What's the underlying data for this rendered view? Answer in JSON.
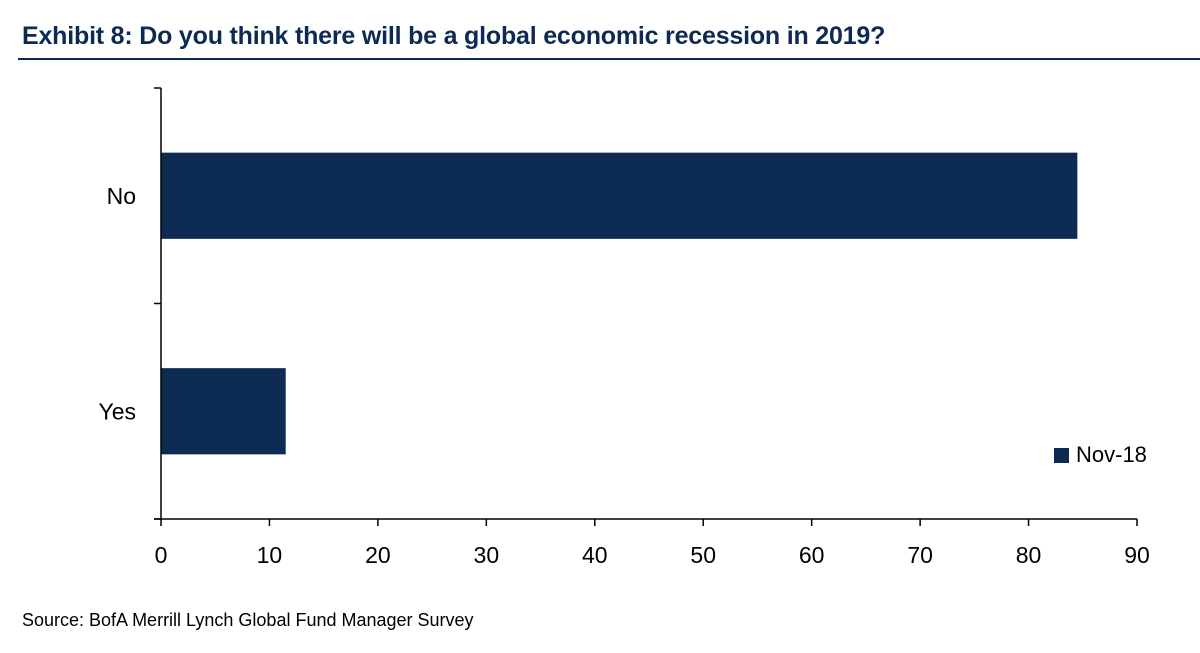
{
  "title": "Exhibit 8: Do you think there will be a global economic recession in 2019?",
  "source": "Source: BofA Merrill Lynch Global Fund Manager Survey",
  "colors": {
    "title": "#0c2a52",
    "bar": "#0c2a52",
    "axis": "#000000"
  },
  "chart_data": {
    "type": "bar",
    "orientation": "horizontal",
    "categories": [
      "No",
      "Yes"
    ],
    "series": [
      {
        "name": "Nov-18",
        "values": [
          84.5,
          11.5
        ]
      }
    ],
    "xlim": [
      0,
      90
    ],
    "xticks": [
      "0",
      "10",
      "20",
      "30",
      "40",
      "50",
      "60",
      "70",
      "80",
      "90"
    ],
    "grid": false,
    "legend": "bottom-right",
    "legend_entries": [
      "Nov-18"
    ]
  }
}
